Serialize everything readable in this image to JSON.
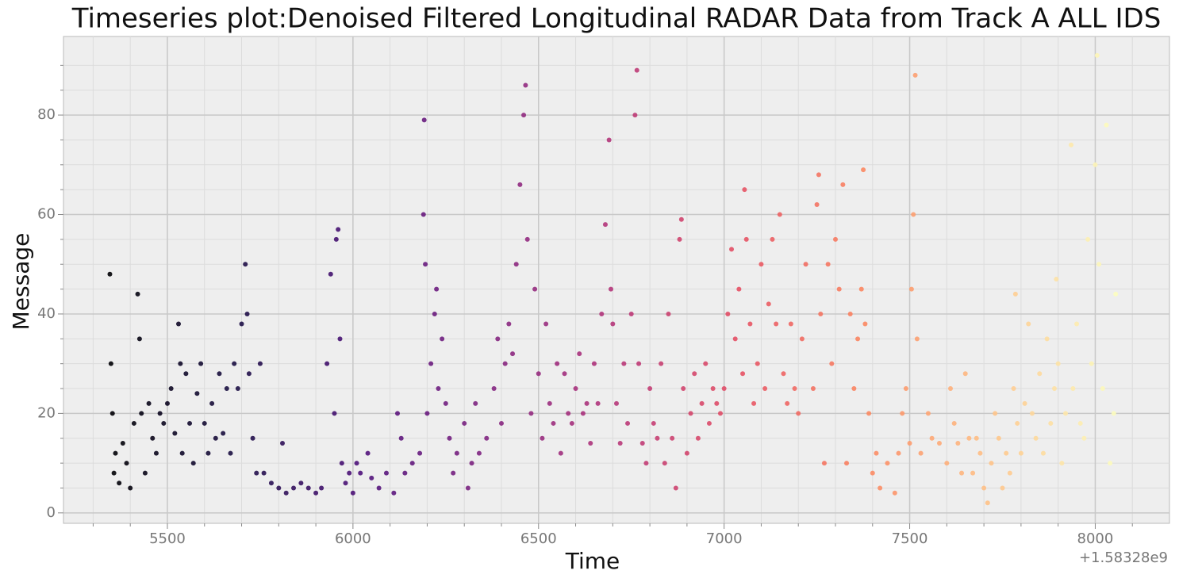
{
  "chart_data": {
    "type": "scatter",
    "title": "Timeseries plot:Denoised Filtered Longitudinal RADAR Data from Track A ALL IDS",
    "x_label": "Time",
    "y_label": "Message",
    "x_offset_label": "+1.58328e9",
    "xlim": [
      5220,
      8200
    ],
    "ylim": [
      -2.1,
      95.8
    ],
    "xticks": [
      5500,
      6000,
      6500,
      7000,
      7500,
      8000
    ],
    "yticks": [
      0,
      20,
      40,
      60,
      80
    ],
    "xminorticks": [
      5300,
      5400,
      5600,
      5700,
      5800,
      5900,
      6100,
      6200,
      6300,
      6400,
      6600,
      6700,
      6800,
      6900,
      7100,
      7200,
      7300,
      7400,
      7600,
      7700,
      7800,
      7900,
      8100
    ],
    "yminorticks": [
      5,
      10,
      15,
      25,
      30,
      35,
      45,
      50,
      55,
      65,
      70,
      75,
      85,
      90
    ],
    "grid": true,
    "colormap": [
      "#000004",
      "#1c1044",
      "#4f127b",
      "#812581",
      "#b5367a",
      "#e55064",
      "#fb8761",
      "#fec287",
      "#fcfdbf"
    ],
    "x": [
      5345,
      5348,
      5352,
      5356,
      5360,
      5370,
      5380,
      5390,
      5400,
      5410,
      5420,
      5425,
      5430,
      5440,
      5450,
      5460,
      5470,
      5480,
      5490,
      5500,
      5510,
      5520,
      5530,
      5535,
      5540,
      5550,
      5560,
      5570,
      5580,
      5590,
      5600,
      5610,
      5620,
      5630,
      5640,
      5650,
      5660,
      5670,
      5680,
      5690,
      5700,
      5710,
      5715,
      5720,
      5730,
      5740,
      5750,
      5760,
      5780,
      5800,
      5810,
      5820,
      5840,
      5860,
      5880,
      5900,
      5915,
      5930,
      5940,
      5950,
      5955,
      5960,
      5965,
      5970,
      5980,
      5990,
      6000,
      6010,
      6020,
      6040,
      6050,
      6070,
      6090,
      6110,
      6120,
      6130,
      6140,
      6160,
      6180,
      6190,
      6192,
      6195,
      6200,
      6210,
      6220,
      6225,
      6230,
      6240,
      6250,
      6260,
      6270,
      6280,
      6300,
      6310,
      6320,
      6330,
      6340,
      6360,
      6380,
      6390,
      6400,
      6410,
      6420,
      6430,
      6440,
      6450,
      6460,
      6465,
      6470,
      6480,
      6490,
      6500,
      6510,
      6520,
      6530,
      6540,
      6550,
      6560,
      6570,
      6580,
      6590,
      6600,
      6610,
      6620,
      6630,
      6640,
      6650,
      6660,
      6670,
      6680,
      6690,
      6695,
      6700,
      6710,
      6720,
      6730,
      6740,
      6750,
      6760,
      6765,
      6770,
      6780,
      6790,
      6800,
      6810,
      6820,
      6830,
      6840,
      6850,
      6860,
      6870,
      6880,
      6885,
      6890,
      6900,
      6910,
      6920,
      6930,
      6940,
      6950,
      6960,
      6970,
      6980,
      6990,
      7000,
      7010,
      7020,
      7030,
      7040,
      7050,
      7055,
      7060,
      7070,
      7080,
      7090,
      7100,
      7110,
      7120,
      7130,
      7140,
      7150,
      7160,
      7170,
      7180,
      7190,
      7200,
      7210,
      7220,
      7240,
      7250,
      7255,
      7260,
      7270,
      7280,
      7290,
      7300,
      7310,
      7320,
      7330,
      7340,
      7350,
      7360,
      7370,
      7375,
      7380,
      7390,
      7400,
      7410,
      7420,
      7440,
      7460,
      7470,
      7480,
      7490,
      7500,
      7505,
      7510,
      7515,
      7520,
      7530,
      7550,
      7560,
      7580,
      7600,
      7610,
      7620,
      7630,
      7640,
      7650,
      7660,
      7670,
      7680,
      7690,
      7700,
      7710,
      7720,
      7730,
      7740,
      7750,
      7760,
      7770,
      7780,
      7785,
      7790,
      7800,
      7810,
      7820,
      7830,
      7840,
      7850,
      7860,
      7870,
      7880,
      7890,
      7895,
      7900,
      7910,
      7920,
      7935,
      7940,
      7950,
      7960,
      7970,
      7980,
      7990,
      8000,
      8005,
      8010,
      8020,
      8030,
      8040,
      8050,
      8055
    ],
    "values": [
      48,
      30,
      20,
      8,
      12,
      6,
      14,
      10,
      5,
      18,
      44,
      35,
      20,
      8,
      22,
      15,
      12,
      20,
      18,
      22,
      25,
      16,
      38,
      30,
      12,
      28,
      18,
      10,
      24,
      30,
      18,
      12,
      22,
      15,
      28,
      16,
      25,
      12,
      30,
      25,
      38,
      50,
      40,
      28,
      15,
      8,
      30,
      8,
      6,
      5,
      14,
      4,
      5,
      6,
      5,
      4,
      5,
      30,
      48,
      20,
      55,
      57,
      35,
      10,
      6,
      8,
      4,
      10,
      8,
      12,
      7,
      5,
      8,
      4,
      20,
      15,
      8,
      10,
      12,
      60,
      79,
      50,
      20,
      30,
      40,
      45,
      25,
      35,
      22,
      15,
      8,
      12,
      18,
      5,
      10,
      22,
      12,
      15,
      25,
      35,
      18,
      30,
      38,
      32,
      50,
      66,
      80,
      86,
      55,
      20,
      45,
      28,
      15,
      38,
      22,
      18,
      30,
      12,
      28,
      20,
      18,
      25,
      32,
      20,
      22,
      14,
      30,
      22,
      40,
      58,
      75,
      45,
      38,
      22,
      14,
      30,
      18,
      40,
      80,
      89,
      30,
      14,
      10,
      25,
      18,
      15,
      30,
      10,
      40,
      15,
      5,
      55,
      59,
      25,
      12,
      20,
      28,
      15,
      22,
      30,
      18,
      25,
      22,
      20,
      25,
      40,
      53,
      35,
      45,
      28,
      65,
      55,
      38,
      22,
      30,
      50,
      25,
      42,
      55,
      38,
      60,
      28,
      22,
      38,
      25,
      20,
      35,
      50,
      25,
      62,
      68,
      40,
      10,
      50,
      30,
      55,
      45,
      66,
      10,
      40,
      25,
      35,
      45,
      69,
      38,
      20,
      8,
      12,
      5,
      10,
      4,
      12,
      20,
      25,
      14,
      45,
      60,
      88,
      35,
      12,
      20,
      15,
      14,
      10,
      25,
      18,
      14,
      8,
      28,
      15,
      8,
      15,
      12,
      5,
      2,
      10,
      20,
      15,
      5,
      12,
      8,
      25,
      44,
      18,
      12,
      22,
      38,
      20,
      15,
      28,
      12,
      35,
      18,
      25,
      47,
      30,
      10,
      20,
      74,
      25,
      38,
      18,
      15,
      55,
      30,
      70,
      92,
      50,
      25,
      78,
      10,
      20,
      44
    ]
  }
}
